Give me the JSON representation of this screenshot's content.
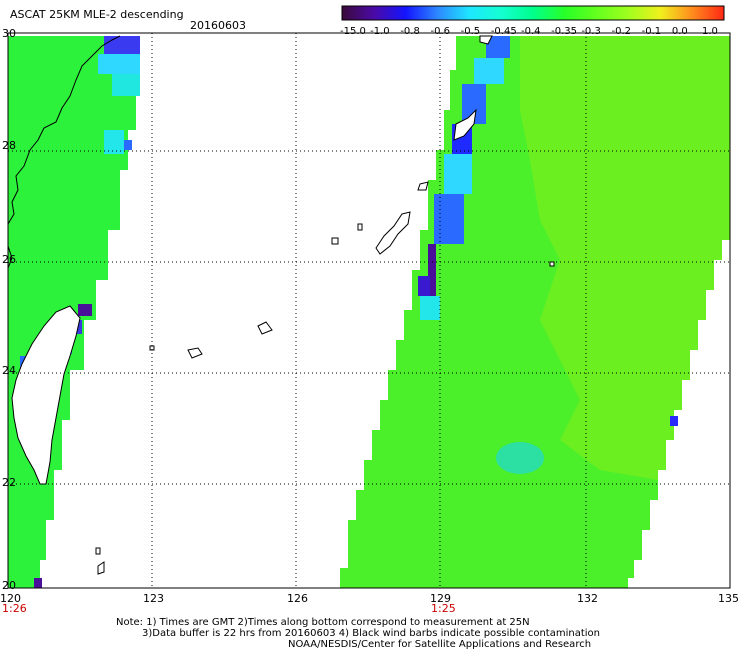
{
  "header": {
    "title": "ASCAT 25KM MLE-2 descending",
    "date": "20160603"
  },
  "colorbar": {
    "labels": [
      "-15.0",
      "-1.0",
      "-0.8",
      "-0.6",
      "-0.5",
      "-0.45",
      "-0.4",
      "-0.35",
      "-0.3",
      "-0.2",
      "-0.1",
      "0.0",
      "1.0"
    ],
    "colors": [
      "#3a0a3a",
      "#4b0aa5",
      "#1414ff",
      "#2d87ff",
      "#1ee6ff",
      "#14ffd2",
      "#00ff8c",
      "#28ff28",
      "#64ff1e",
      "#a0ff1e",
      "#f0f01e",
      "#ff8c1e",
      "#ff2814"
    ]
  },
  "axes": {
    "lat_labels": [
      "30",
      "28",
      "26",
      "24",
      "22",
      "20"
    ],
    "lon_labels": [
      "120",
      "123",
      "126",
      "129",
      "132",
      "135"
    ],
    "time_labels": [
      "1:26",
      "1:25"
    ],
    "time_color": "#cc0000"
  },
  "footer": {
    "line1": "Note: 1) Times are GMT 2)Times along bottom correspond to measurement at 25N",
    "line2": "3)Data buffer is 22 hrs from 20160603 4) Black wind barbs indicate possible contamination",
    "line3": "NOAA/NESDIS/Center for Satellite Applications and Research"
  },
  "swaths": {
    "west_color": "#2cf23c",
    "east_color": "#4cf02a",
    "east_north_color": "#72ee1e",
    "ocean_color": "#ffffff",
    "land_outline_color": "#000000"
  }
}
